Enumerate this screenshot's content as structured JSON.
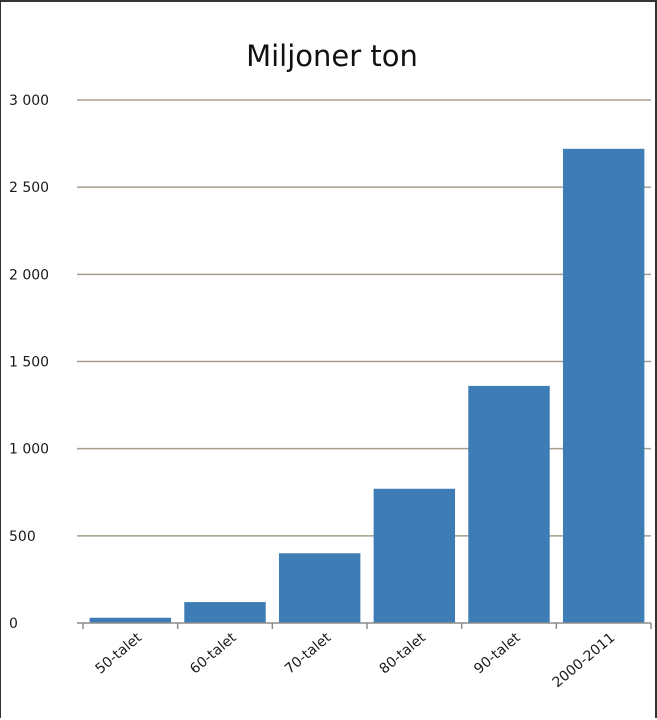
{
  "chart_data": {
    "type": "bar",
    "title": "Miljoner ton",
    "xlabel": "",
    "ylabel": "",
    "categories": [
      "50-talet",
      "60-talet",
      "70-talet",
      "80-talet",
      "90-talet",
      "2000-2011"
    ],
    "values": [
      30,
      120,
      400,
      770,
      1360,
      2720
    ],
    "ylim": [
      0,
      3000
    ],
    "yticks": [
      0,
      500,
      1000,
      1500,
      2000,
      2500,
      3000
    ],
    "ytick_labels": [
      "0",
      "500",
      "1 000",
      "1 500",
      "2 000",
      "2 500",
      "3 000"
    ],
    "grid": true,
    "legend": "none",
    "colors": {
      "bar": "#3e7cb5",
      "grid": "#a89d8c",
      "axis": "#8c8c8c"
    }
  }
}
